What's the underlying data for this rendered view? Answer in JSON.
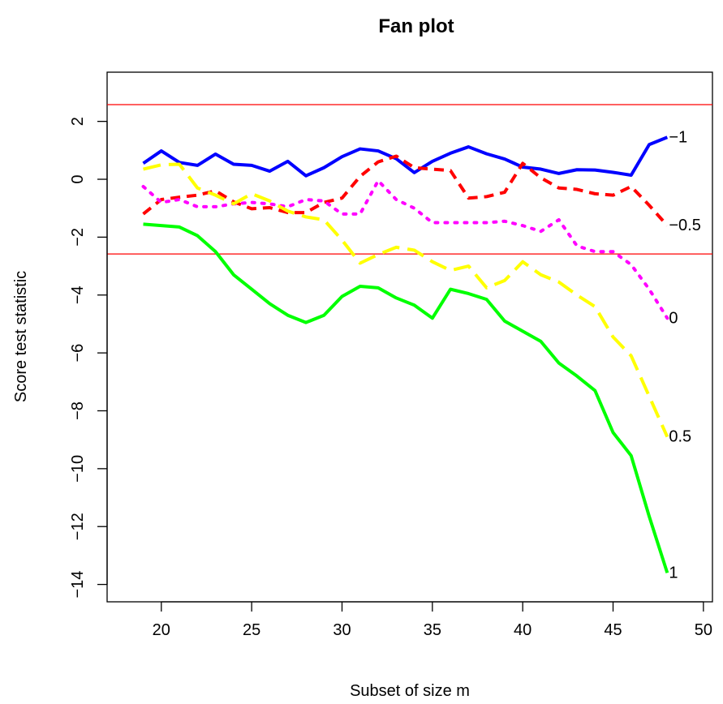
{
  "chart_data": {
    "type": "line",
    "title": "Fan plot",
    "xlabel": "Subset of size m",
    "ylabel": "Score test statistic",
    "xlim": [
      17,
      50.5
    ],
    "ylim": [
      -14.6,
      3.7
    ],
    "xticks": [
      20,
      25,
      30,
      35,
      40,
      45,
      50
    ],
    "yticks": [
      2,
      0,
      -2,
      -4,
      -6,
      -8,
      -10,
      -12,
      -14
    ],
    "reference_lines": [
      2.58,
      -2.58
    ],
    "reference_color": "#ff0000",
    "x": [
      19,
      20,
      21,
      22,
      23,
      24,
      25,
      26,
      27,
      28,
      29,
      30,
      31,
      32,
      33,
      34,
      35,
      36,
      37,
      38,
      39,
      40,
      41,
      42,
      43,
      44,
      45,
      46,
      47,
      48
    ],
    "series": [
      {
        "name": "-1",
        "color": "#0000ff",
        "dash": "solid",
        "values": [
          0.55,
          0.98,
          0.58,
          0.48,
          0.87,
          0.52,
          0.48,
          0.28,
          0.62,
          0.12,
          0.4,
          0.78,
          1.05,
          0.98,
          0.71,
          0.23,
          0.62,
          0.9,
          1.12,
          0.88,
          0.7,
          0.42,
          0.35,
          0.2,
          0.33,
          0.32,
          0.24,
          0.14,
          1.2,
          1.45
        ]
      },
      {
        "name": "-0.5",
        "color": "#ff0000",
        "dash": "dashed",
        "values": [
          -1.2,
          -0.7,
          -0.62,
          -0.55,
          -0.4,
          -0.78,
          -1.02,
          -0.98,
          -1.15,
          -1.15,
          -0.8,
          -0.65,
          0.1,
          0.6,
          0.8,
          0.4,
          0.35,
          0.3,
          -0.65,
          -0.6,
          -0.45,
          0.55,
          0.05,
          -0.3,
          -0.35,
          -0.5,
          -0.55,
          -0.25,
          -0.9,
          -1.6
        ]
      },
      {
        "name": "0",
        "color": "#ff00ff",
        "dash": "dotted",
        "values": [
          -0.25,
          -0.8,
          -0.7,
          -0.95,
          -0.95,
          -0.85,
          -0.8,
          -0.85,
          -0.95,
          -0.7,
          -0.75,
          -1.2,
          -1.2,
          -0.05,
          -0.7,
          -1.0,
          -1.5,
          -1.5,
          -1.5,
          -1.5,
          -1.45,
          -1.6,
          -1.8,
          -1.4,
          -2.3,
          -2.5,
          -2.5,
          -2.95,
          -3.8,
          -4.8
        ]
      },
      {
        "name": "0.5",
        "color": "#ffff00",
        "dash": "longdash",
        "values": [
          0.35,
          0.5,
          0.52,
          -0.3,
          -0.55,
          -0.85,
          -0.5,
          -0.75,
          -1.1,
          -1.3,
          -1.4,
          -2.1,
          -2.9,
          -2.6,
          -2.35,
          -2.45,
          -2.85,
          -3.15,
          -3.0,
          -3.75,
          -3.5,
          -2.85,
          -3.3,
          -3.55,
          -4.0,
          -4.4,
          -5.45,
          -6.1,
          -7.5,
          -8.9
        ]
      },
      {
        "name": "1",
        "color": "#00ff00",
        "dash": "solid",
        "values": [
          -1.55,
          -1.6,
          -1.65,
          -1.95,
          -2.5,
          -3.3,
          -3.8,
          -4.3,
          -4.7,
          -4.95,
          -4.7,
          -4.05,
          -3.7,
          -3.75,
          -4.1,
          -4.35,
          -4.8,
          -3.8,
          -3.95,
          -4.15,
          -4.9,
          -5.25,
          -5.6,
          -6.35,
          -6.8,
          -7.3,
          -8.75,
          -9.55,
          -11.65,
          -13.6
        ]
      }
    ]
  }
}
